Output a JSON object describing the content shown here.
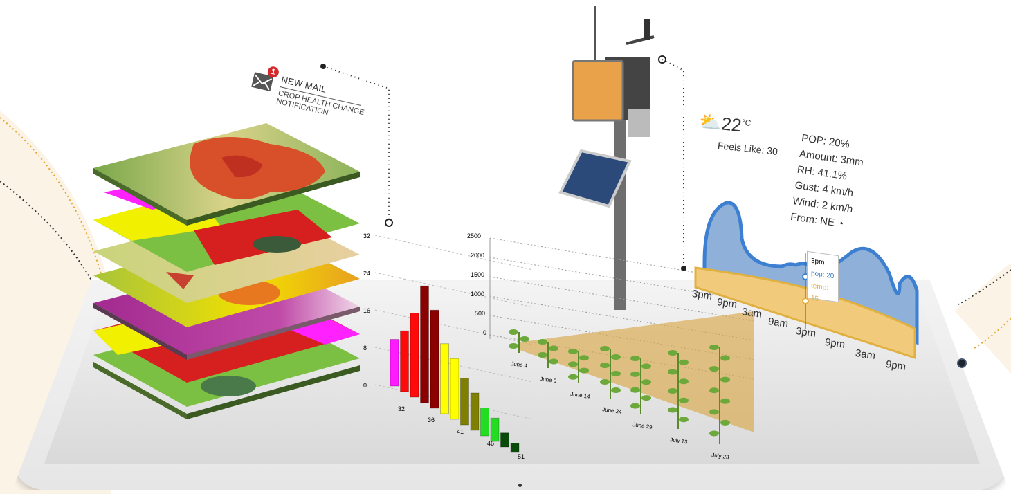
{
  "mail": {
    "badge": "1",
    "title": "NEW MAIL",
    "subtitle": "CROP HEALTH CHANGE NOTIFICATION"
  },
  "weather": {
    "temperature": "22",
    "unit": "°C",
    "feels_like_label": "Feels Like:",
    "feels_like_value": "30",
    "details": [
      "POP: 20%",
      "Amount: 3mm",
      "RH: 41.1%",
      "Gust: 4 km/h",
      "Wind: 2 km/h",
      "From: NE"
    ],
    "tooltip": {
      "time": "3pm",
      "pop": "pop: 20",
      "temp": "temp: 15"
    },
    "time_labels": [
      "3pm",
      "9pm",
      "3am",
      "9am",
      "3pm",
      "9pm",
      "3am",
      "9pm"
    ],
    "colors": {
      "pop": "#3d7fd0",
      "temp": "#e0b040"
    }
  },
  "bar_chart": {
    "y_ticks": [
      "32",
      "24",
      "16",
      "8",
      "0"
    ],
    "x_ticks": [
      "32",
      "36",
      "41",
      "46",
      "51"
    ],
    "bars": [
      {
        "value": 10,
        "color": "#ff1aff"
      },
      {
        "value": 13,
        "color": "#ff0a0a"
      },
      {
        "value": 18,
        "color": "#ff0a0a"
      },
      {
        "value": 25,
        "color": "#8b0000"
      },
      {
        "value": 21,
        "color": "#8b0000"
      },
      {
        "value": 15,
        "color": "#ffff00"
      },
      {
        "value": 13,
        "color": "#ffff00"
      },
      {
        "value": 10,
        "color": "#808000"
      },
      {
        "value": 8,
        "color": "#808000"
      },
      {
        "value": 6,
        "color": "#22dd22"
      },
      {
        "value": 5,
        "color": "#22dd22"
      },
      {
        "value": 3,
        "color": "#0a4a0a"
      },
      {
        "value": 2,
        "color": "#0a4a0a"
      }
    ]
  },
  "growth_chart": {
    "y_ticks": [
      "2500",
      "2000",
      "1500",
      "1000",
      "500",
      "0"
    ],
    "dates": [
      "June 4",
      "June 9",
      "June 14",
      "June 24",
      "June 29",
      "July 13",
      "July 23"
    ]
  }
}
